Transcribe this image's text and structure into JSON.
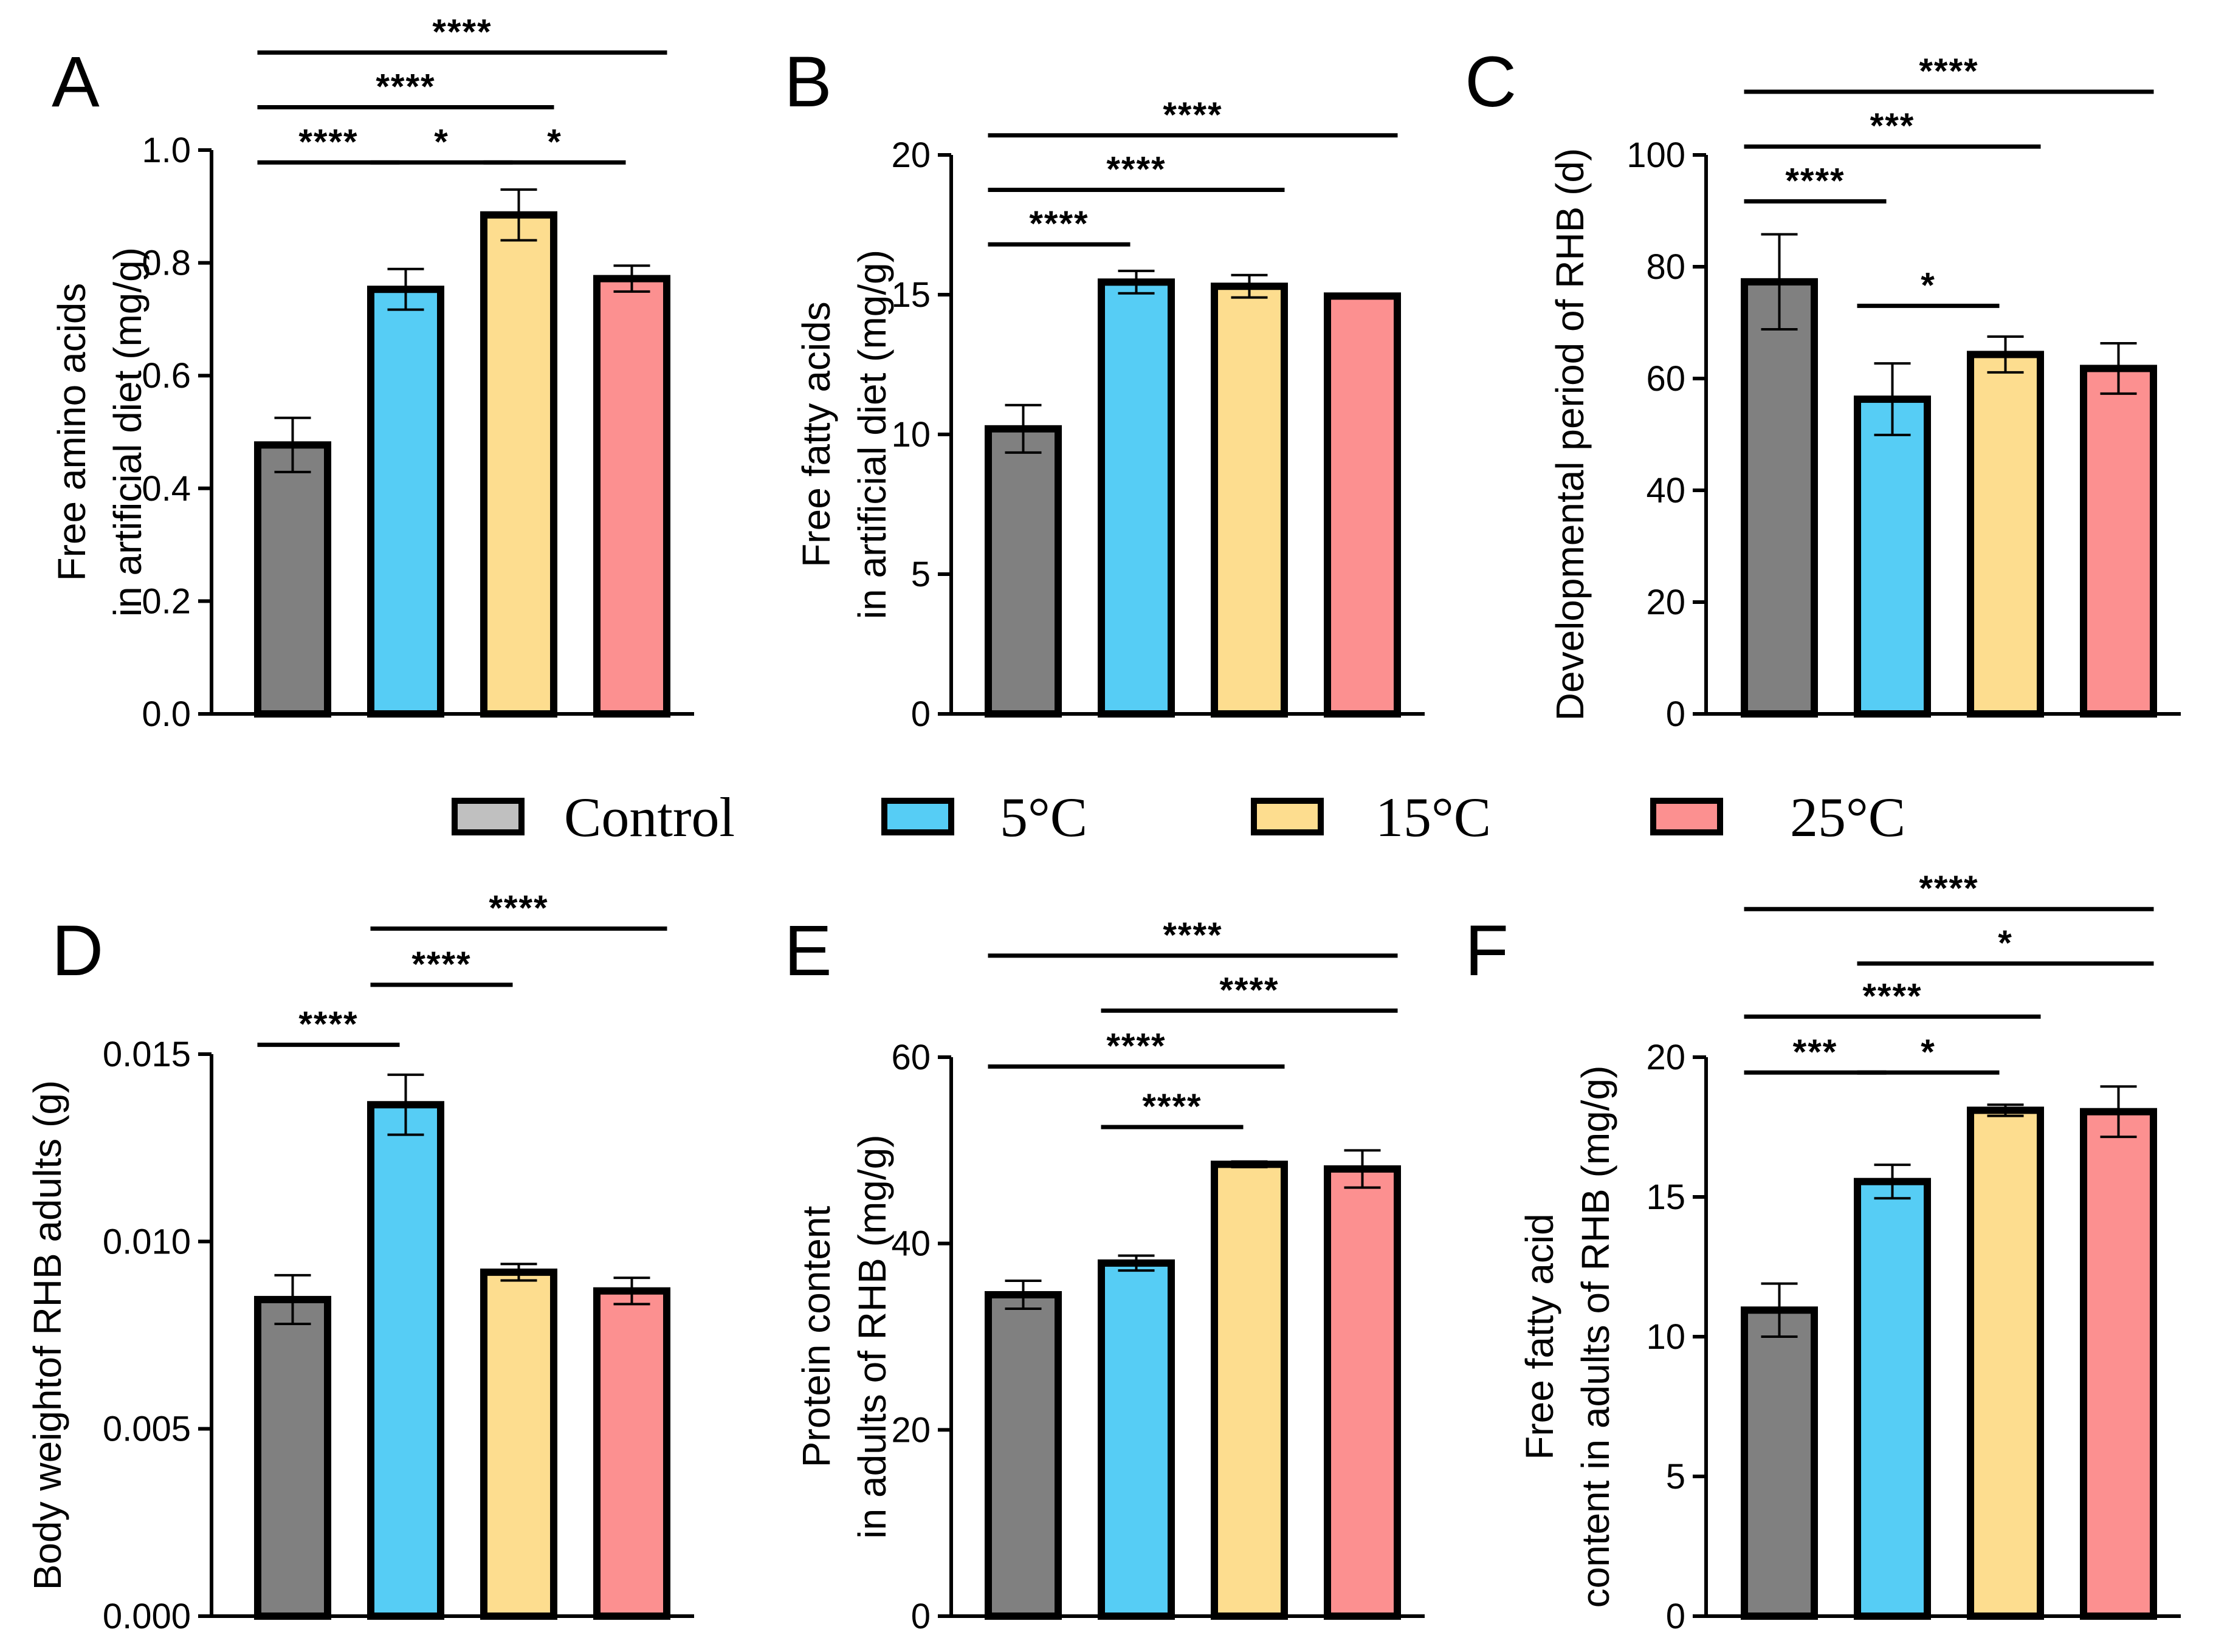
{
  "legend": [
    {
      "label": "Control",
      "color": "#808080",
      "swatch": "#c0c0c0"
    },
    {
      "label": "5°C",
      "color": "#56cdf5"
    },
    {
      "label": "15°C",
      "color": "#fddd8f"
    },
    {
      "label": "25°C",
      "color": "#fc9090"
    }
  ],
  "chart_data": [
    {
      "panel": "A",
      "type": "bar",
      "categories": [
        "Control",
        "5°C",
        "15°C",
        "25°C"
      ],
      "values": [
        0.477,
        0.753,
        0.885,
        0.772
      ],
      "errors": [
        0.048,
        0.036,
        0.045,
        0.023
      ],
      "ylabel_lines": [
        "Free amino acids",
        "in artificial diet (mg/g)"
      ],
      "ylim": [
        0,
        1.0
      ],
      "yticks": [
        "0.0",
        "0.2",
        "0.4",
        "0.6",
        "0.8",
        "1.0"
      ],
      "sig": [
        {
          "from": 0,
          "to": 1,
          "label": "****",
          "y": 0.978
        },
        {
          "from": 1,
          "to": 2,
          "label": "*",
          "y": 0.978
        },
        {
          "from": 2,
          "to": 3,
          "label": "*",
          "y": 0.978
        },
        {
          "from": 0,
          "to": 2,
          "label": "****",
          "y": 1.076
        },
        {
          "from": 0,
          "to": 3,
          "label": "****",
          "y": 1.173
        }
      ]
    },
    {
      "panel": "B",
      "type": "bar",
      "categories": [
        "Control",
        "5°C",
        "15°C",
        "25°C"
      ],
      "values": [
        10.2,
        15.45,
        15.3,
        14.95
      ],
      "errors": [
        0.85,
        0.4,
        0.4,
        0.08
      ],
      "ylabel_lines": [
        "Free fatty acids",
        "in artificial diet (mg/g)"
      ],
      "ylim": [
        0,
        20
      ],
      "yticks": [
        "0",
        "5",
        "10",
        "15",
        "20"
      ],
      "sig": [
        {
          "from": 0,
          "to": 1,
          "label": "****",
          "y": 16.8
        },
        {
          "from": 0,
          "to": 2,
          "label": "****",
          "y": 18.75
        },
        {
          "from": 0,
          "to": 3,
          "label": "****",
          "y": 20.7
        }
      ]
    },
    {
      "panel": "C",
      "type": "bar",
      "categories": [
        "Control",
        "5°C",
        "15°C",
        "25°C"
      ],
      "values": [
        77.3,
        56.3,
        64.3,
        61.8
      ],
      "errors": [
        8.5,
        6.4,
        3.2,
        4.5
      ],
      "ylabel_lines": [
        "Developmental period of RHB (d)"
      ],
      "ylim": [
        0,
        100
      ],
      "yticks": [
        "0",
        "20",
        "40",
        "60",
        "80",
        "100"
      ],
      "sig": [
        {
          "from": 0,
          "to": 1,
          "label": "****",
          "y": 91.7
        },
        {
          "from": 1,
          "to": 2,
          "label": "*",
          "y": 73.0
        },
        {
          "from": 0,
          "to": 2,
          "label": "***",
          "y": 101.5
        },
        {
          "from": 0,
          "to": 3,
          "label": "****",
          "y": 111.3
        }
      ]
    },
    {
      "panel": "D",
      "type": "bar",
      "categories": [
        "Control",
        "5°C",
        "15°C",
        "25°C"
      ],
      "values": [
        0.00845,
        0.01365,
        0.00918,
        0.00868
      ],
      "errors": [
        0.00065,
        0.0008,
        0.00022,
        0.00035
      ],
      "ylabel_lines": [
        "Body weightof RHB adults (g)"
      ],
      "ylim": [
        0,
        0.015
      ],
      "yticks": [
        "0.000",
        "0.005",
        "0.010",
        "0.015"
      ],
      "sig": [
        {
          "from": 0,
          "to": 1,
          "label": "****",
          "y": 0.01525
        },
        {
          "from": 1,
          "to": 2,
          "label": "****",
          "y": 0.01685
        },
        {
          "from": 1,
          "to": 3,
          "label": "****",
          "y": 0.01835
        }
      ]
    },
    {
      "panel": "E",
      "type": "bar",
      "categories": [
        "Control",
        "5°C",
        "15°C",
        "25°C"
      ],
      "values": [
        34.5,
        37.9,
        48.5,
        48.0
      ],
      "errors": [
        1.5,
        0.8,
        0.3,
        2.0
      ],
      "ylabel_lines": [
        "Protein content",
        "in adults of RHB (mg/g)"
      ],
      "ylim": [
        0,
        60
      ],
      "yticks": [
        "0",
        "20",
        "40",
        "60"
      ],
      "sig": [
        {
          "from": 1,
          "to": 2,
          "label": "****",
          "y": 52.5
        },
        {
          "from": 0,
          "to": 2,
          "label": "****",
          "y": 59.0
        },
        {
          "from": 1,
          "to": 3,
          "label": "****",
          "y": 65.0
        },
        {
          "from": 0,
          "to": 3,
          "label": "****",
          "y": 70.9
        }
      ]
    },
    {
      "panel": "F",
      "type": "bar",
      "categories": [
        "Control",
        "5°C",
        "15°C",
        "25°C"
      ],
      "values": [
        10.95,
        15.55,
        18.1,
        18.05
      ],
      "errors": [
        0.95,
        0.6,
        0.2,
        0.9
      ],
      "ylabel_lines": [
        "Free fatty acid",
        "content in adults of RHB (mg/g)"
      ],
      "ylim": [
        0,
        20
      ],
      "yticks": [
        "0",
        "5",
        "10",
        "15",
        "20"
      ],
      "sig": [
        {
          "from": 0,
          "to": 1,
          "label": "***",
          "y": 19.45
        },
        {
          "from": 1,
          "to": 2,
          "label": "*",
          "y": 19.45
        },
        {
          "from": 0,
          "to": 2,
          "label": "****",
          "y": 21.45
        },
        {
          "from": 1,
          "to": 3,
          "label": "*",
          "y": 23.35
        },
        {
          "from": 0,
          "to": 3,
          "label": "****",
          "y": 25.3
        }
      ]
    }
  ]
}
